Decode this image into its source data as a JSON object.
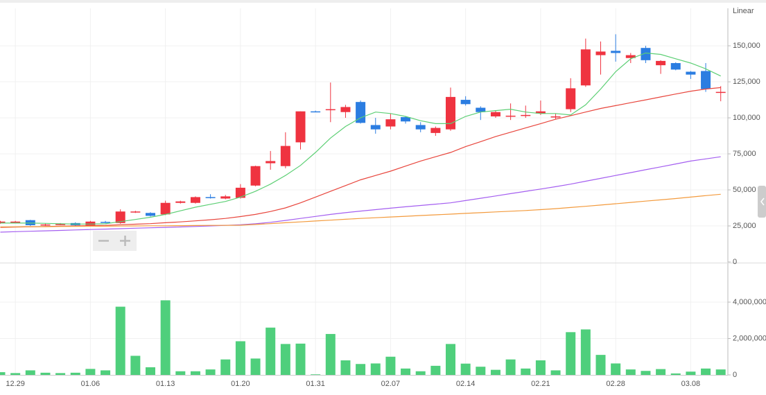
{
  "chart_data": [
    {
      "type": "candlestick",
      "scale_label": "Linear",
      "up_color": "#ef3340",
      "down_color": "#2b7de1",
      "open": [
        27000,
        27000,
        29000,
        25500,
        25800,
        27000,
        25500,
        27800,
        27000,
        34500,
        34000,
        33000,
        41000,
        41000,
        45000,
        44000,
        44500,
        53000,
        68500,
        66500,
        83000,
        104500,
        105500,
        104000,
        111000,
        95000,
        94000,
        100500,
        95000,
        89500,
        92000,
        112500,
        107000,
        101000,
        101000,
        101500,
        103000,
        100500,
        106000,
        122500,
        143500,
        146500,
        141500,
        148500,
        136500,
        138000,
        132000,
        132500,
        117500
      ],
      "high": [
        28500,
        28500,
        29200,
        26500,
        27000,
        27500,
        28500,
        28500,
        36500,
        35500,
        34500,
        42500,
        42500,
        45500,
        47000,
        46500,
        54000,
        66800,
        77000,
        90000,
        104500,
        105000,
        124500,
        109000,
        112000,
        100000,
        103000,
        101000,
        97000,
        94000,
        121000,
        115000,
        108000,
        105000,
        110000,
        108500,
        112000,
        103000,
        127500,
        155000,
        153000,
        158000,
        145000,
        150000,
        140000,
        138500,
        132500,
        138000,
        122000
      ],
      "low": [
        26500,
        26800,
        25000,
        25000,
        25500,
        25000,
        25000,
        27000,
        26500,
        34000,
        31500,
        32500,
        40500,
        40500,
        44000,
        43500,
        44000,
        52500,
        64000,
        65000,
        78000,
        104000,
        97000,
        100000,
        96000,
        89000,
        92000,
        96000,
        90000,
        87500,
        91000,
        108500,
        98500,
        100000,
        98500,
        100000,
        102000,
        99000,
        104000,
        121500,
        130000,
        139000,
        138000,
        138000,
        130500,
        133000,
        127000,
        118000,
        111500
      ],
      "close": [
        28000,
        28000,
        25500,
        26000,
        26300,
        25500,
        28000,
        27300,
        35000,
        35000,
        32000,
        41000,
        42000,
        45000,
        44500,
        45500,
        51500,
        66500,
        70000,
        80500,
        104500,
        104000,
        106000,
        107500,
        96500,
        92000,
        99000,
        97500,
        92000,
        93000,
        114500,
        109500,
        104000,
        104000,
        101500,
        102000,
        104500,
        101000,
        120500,
        147500,
        146000,
        145000,
        143500,
        140000,
        139500,
        133500,
        130000,
        120000,
        118000
      ],
      "series": [
        {
          "color": "#5ccf74",
          "values": [
            27000,
            27000,
            27000,
            26800,
            26500,
            26300,
            26300,
            26500,
            28000,
            29500,
            31000,
            33000,
            35500,
            38000,
            40000,
            42000,
            45000,
            49000,
            54000,
            60000,
            67000,
            76000,
            86000,
            94000,
            100000,
            104000,
            103000,
            101000,
            98000,
            96000,
            96000,
            101000,
            104000,
            105000,
            106000,
            104000,
            103000,
            103000,
            102000,
            109000,
            120000,
            132000,
            141000,
            145000,
            144000,
            141000,
            138000,
            134000,
            129000
          ]
        },
        {
          "color": "#e8453c",
          "values": [
            24000,
            24200,
            24400,
            24600,
            24800,
            25000,
            25200,
            25400,
            25800,
            26200,
            26600,
            27200,
            27800,
            28500,
            29300,
            30200,
            31500,
            33000,
            35000,
            37500,
            41000,
            45000,
            49000,
            53000,
            57000,
            60000,
            63000,
            66500,
            70000,
            73000,
            76000,
            80000,
            83500,
            87000,
            90000,
            93000,
            96000,
            99000,
            101500,
            104000,
            106500,
            108500,
            110500,
            112500,
            114500,
            116500,
            118500,
            120000,
            121000
          ]
        },
        {
          "color": "#a45ef0",
          "values": [
            20700,
            21000,
            21300,
            21600,
            21900,
            22200,
            22500,
            22800,
            23100,
            23400,
            23700,
            24000,
            24300,
            24600,
            25000,
            25400,
            25800,
            26500,
            27500,
            28800,
            30200,
            31600,
            33000,
            34200,
            35300,
            36300,
            37300,
            38300,
            39200,
            40100,
            41000,
            42600,
            44200,
            45800,
            47400,
            49000,
            50600,
            52200,
            54000,
            56000,
            58000,
            60000,
            62000,
            64000,
            66000,
            68000,
            70000,
            71500,
            73000
          ]
        },
        {
          "color": "#f39a3c",
          "values": [
            24300,
            24400,
            24500,
            24500,
            24600,
            24700,
            24800,
            24800,
            24900,
            25000,
            25100,
            25100,
            25200,
            25300,
            25400,
            25400,
            25500,
            26000,
            26600,
            27200,
            27800,
            28400,
            29000,
            29600,
            30200,
            30700,
            31200,
            31700,
            32200,
            32700,
            33200,
            33700,
            34200,
            34700,
            35200,
            35700,
            36300,
            37000,
            37800,
            38600,
            39500,
            40400,
            41300,
            42200,
            43100,
            44000,
            45000,
            46000,
            47000
          ]
        }
      ],
      "ylim": [
        0,
        176000
      ],
      "yticks": [
        0,
        {
          "value": 25000,
          "label": "25,000"
        },
        {
          "value": 50000,
          "label": "50,000"
        },
        {
          "value": 75000,
          "label": "75,000"
        },
        {
          "value": 100000,
          "label": "100,000"
        },
        {
          "value": 125000,
          "label": "125,000"
        },
        {
          "value": 150000,
          "label": "150,000"
        }
      ],
      "grid": true
    },
    {
      "type": "bar",
      "color": "#4fcf7c",
      "categories": [
        null,
        "12.29",
        null,
        null,
        null,
        null,
        "01.06",
        null,
        null,
        null,
        null,
        "01.13",
        null,
        null,
        null,
        null,
        "01.20",
        null,
        null,
        null,
        null,
        "01.31",
        null,
        null,
        null,
        null,
        "02.07",
        null,
        null,
        null,
        null,
        "02.14",
        null,
        null,
        null,
        null,
        "02.21",
        null,
        null,
        null,
        null,
        "02.28",
        null,
        null,
        null,
        null,
        "03.08",
        null,
        null
      ],
      "values": [
        150000,
        100000,
        250000,
        120000,
        100000,
        120000,
        330000,
        250000,
        3750000,
        1050000,
        420000,
        4100000,
        200000,
        200000,
        300000,
        850000,
        1850000,
        900000,
        2600000,
        1700000,
        1720000,
        30000,
        2250000,
        800000,
        600000,
        630000,
        1000000,
        350000,
        200000,
        500000,
        1700000,
        620000,
        450000,
        280000,
        850000,
        350000,
        800000,
        250000,
        2350000,
        2500000,
        1100000,
        630000,
        300000,
        220000,
        320000,
        80000,
        180000,
        350000,
        300000
      ],
      "ylim": [
        0,
        6000000
      ],
      "yticks": [
        0,
        {
          "value": 2000000,
          "label": "2,000,000"
        },
        {
          "value": 4000000,
          "label": "4,000,000"
        }
      ],
      "grid": true
    }
  ]
}
